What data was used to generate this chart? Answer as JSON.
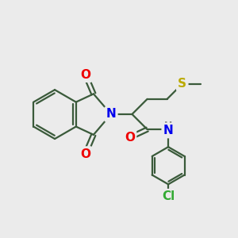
{
  "bg_color": "#ebebeb",
  "bond_color": "#3a5a3a",
  "bond_width": 1.6,
  "font_size_atoms": 11,
  "colors": {
    "N": "#0000ee",
    "O": "#ee0000",
    "S": "#bbaa00",
    "Cl": "#33aa33",
    "H": "#888888"
  },
  "xlim": [
    0,
    10
  ],
  "ylim": [
    0,
    10
  ]
}
